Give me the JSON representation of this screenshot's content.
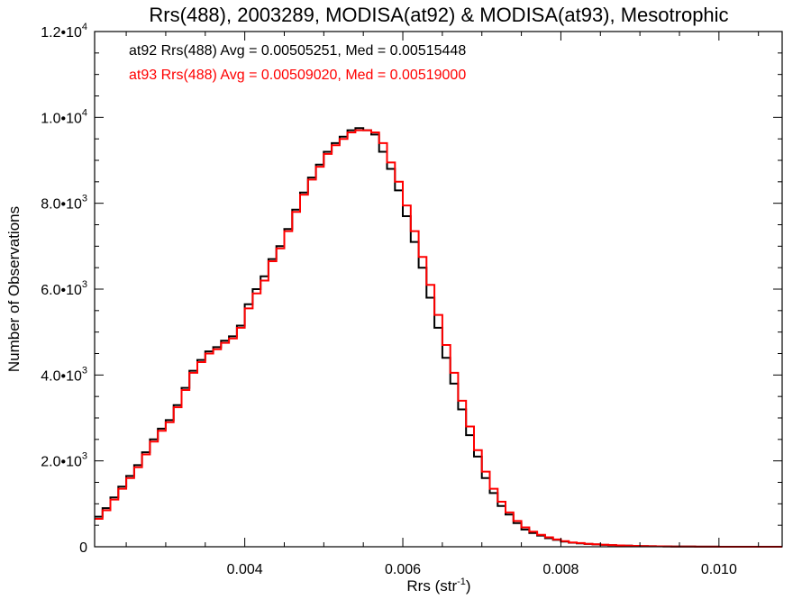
{
  "chart_data": {
    "type": "line",
    "step": true,
    "title": "Rrs(488), 2003289, MODISA(at92) & MODISA(at93), Mesotrophic",
    "xlabel": "Rrs (str",
    "xlabel_sup": "-1",
    "xlabel_tail": ")",
    "ylabel": "Number of Observations",
    "xlim": [
      0.0021,
      0.0108
    ],
    "ylim": [
      0,
      12000
    ],
    "x_ticks": [
      {
        "value": 0.004,
        "label": "0.004"
      },
      {
        "value": 0.006,
        "label": "0.006"
      },
      {
        "value": 0.008,
        "label": "0.008"
      },
      {
        "value": 0.01,
        "label": "0.010"
      }
    ],
    "x_minor_step": 0.0005,
    "y_ticks": [
      {
        "value": 0,
        "mant": "0",
        "exp": ""
      },
      {
        "value": 2000,
        "mant": "2.0•10",
        "exp": "3"
      },
      {
        "value": 4000,
        "mant": "4.0•10",
        "exp": "3"
      },
      {
        "value": 6000,
        "mant": "6.0•10",
        "exp": "3"
      },
      {
        "value": 8000,
        "mant": "8.0•10",
        "exp": "3"
      },
      {
        "value": 10000,
        "mant": "1.0•10",
        "exp": "4"
      },
      {
        "value": 12000,
        "mant": "1.2•10",
        "exp": "4"
      }
    ],
    "y_minor_step": 500,
    "legend": [
      {
        "text": "at92 Rrs(488) Avg = 0.00505251, Med = 0.00515448",
        "color": "#000000"
      },
      {
        "text": "at93 Rrs(488) Avg = 0.00509020, Med = 0.00519000",
        "color": "#ff0000"
      }
    ],
    "legend_placement": "top-left",
    "grid": false,
    "series": [
      {
        "key": "at92",
        "color": "#000000",
        "x": [
          0.0021,
          0.0022,
          0.0023,
          0.0024,
          0.0025,
          0.0026,
          0.0027,
          0.0028,
          0.0029,
          0.003,
          0.0031,
          0.0032,
          0.0033,
          0.0034,
          0.0035,
          0.0036,
          0.0037,
          0.0038,
          0.0039,
          0.004,
          0.0041,
          0.0042,
          0.0043,
          0.0044,
          0.0045,
          0.0046,
          0.0047,
          0.0048,
          0.0049,
          0.005,
          0.0051,
          0.0052,
          0.0053,
          0.0054,
          0.0055,
          0.0056,
          0.0057,
          0.0058,
          0.0059,
          0.006,
          0.0061,
          0.0062,
          0.0063,
          0.0064,
          0.0065,
          0.0066,
          0.0067,
          0.0068,
          0.0069,
          0.007,
          0.0071,
          0.0072,
          0.0073,
          0.0074,
          0.0075,
          0.0076,
          0.0077,
          0.0078,
          0.0079,
          0.008,
          0.0081,
          0.0082,
          0.0083,
          0.0084,
          0.0085,
          0.0086,
          0.0087,
          0.0088,
          0.0089,
          0.009,
          0.0091,
          0.0092,
          0.0093,
          0.0094,
          0.0095,
          0.0096,
          0.0097,
          0.0098,
          0.0099,
          0.01,
          0.0101,
          0.0102,
          0.0103,
          0.0104,
          0.0105,
          0.0106,
          0.0107,
          0.0108
        ],
        "y": [
          700,
          900,
          1150,
          1400,
          1650,
          1900,
          2200,
          2500,
          2750,
          2950,
          3300,
          3700,
          4100,
          4350,
          4550,
          4650,
          4800,
          4900,
          5150,
          5650,
          6000,
          6300,
          6700,
          7000,
          7400,
          7850,
          8250,
          8600,
          8900,
          9200,
          9400,
          9550,
          9700,
          9750,
          9700,
          9600,
          9200,
          8800,
          8300,
          7700,
          7100,
          6500,
          5800,
          5100,
          4400,
          3800,
          3200,
          2600,
          2100,
          1600,
          1250,
          950,
          750,
          550,
          400,
          320,
          260,
          200,
          160,
          120,
          95,
          80,
          65,
          55,
          45,
          38,
          30,
          25,
          20,
          16,
          12,
          10,
          8,
          6,
          5,
          4,
          3,
          2,
          2,
          1,
          1,
          0,
          0,
          0,
          0,
          0,
          0,
          0
        ]
      },
      {
        "key": "at93",
        "color": "#ff0000",
        "x": [
          0.0021,
          0.0022,
          0.0023,
          0.0024,
          0.0025,
          0.0026,
          0.0027,
          0.0028,
          0.0029,
          0.003,
          0.0031,
          0.0032,
          0.0033,
          0.0034,
          0.0035,
          0.0036,
          0.0037,
          0.0038,
          0.0039,
          0.004,
          0.0041,
          0.0042,
          0.0043,
          0.0044,
          0.0045,
          0.0046,
          0.0047,
          0.0048,
          0.0049,
          0.005,
          0.0051,
          0.0052,
          0.0053,
          0.0054,
          0.0055,
          0.0056,
          0.0057,
          0.0058,
          0.0059,
          0.006,
          0.0061,
          0.0062,
          0.0063,
          0.0064,
          0.0065,
          0.0066,
          0.0067,
          0.0068,
          0.0069,
          0.007,
          0.0071,
          0.0072,
          0.0073,
          0.0074,
          0.0075,
          0.0076,
          0.0077,
          0.0078,
          0.0079,
          0.008,
          0.0081,
          0.0082,
          0.0083,
          0.0084,
          0.0085,
          0.0086,
          0.0087,
          0.0088,
          0.0089,
          0.009,
          0.0091,
          0.0092,
          0.0093,
          0.0094,
          0.0095,
          0.0096,
          0.0097,
          0.0098,
          0.0099,
          0.01,
          0.0101,
          0.0102,
          0.0103,
          0.0104,
          0.0105,
          0.0106,
          0.0107,
          0.0108
        ],
        "y": [
          650,
          850,
          1100,
          1350,
          1600,
          1850,
          2150,
          2450,
          2700,
          2900,
          3250,
          3650,
          4050,
          4300,
          4500,
          4600,
          4750,
          4850,
          5100,
          5550,
          5900,
          6200,
          6650,
          6950,
          7350,
          7800,
          8200,
          8550,
          8850,
          9150,
          9350,
          9500,
          9650,
          9700,
          9700,
          9650,
          9400,
          8950,
          8500,
          7950,
          7350,
          6750,
          6100,
          5400,
          4700,
          4050,
          3400,
          2800,
          2250,
          1750,
          1350,
          1050,
          800,
          600,
          450,
          350,
          280,
          220,
          170,
          130,
          100,
          85,
          70,
          58,
          48,
          40,
          32,
          26,
          21,
          17,
          13,
          10,
          8,
          6,
          5,
          4,
          3,
          2,
          2,
          1,
          1,
          0,
          0,
          0,
          0,
          0,
          0,
          0
        ]
      }
    ]
  }
}
